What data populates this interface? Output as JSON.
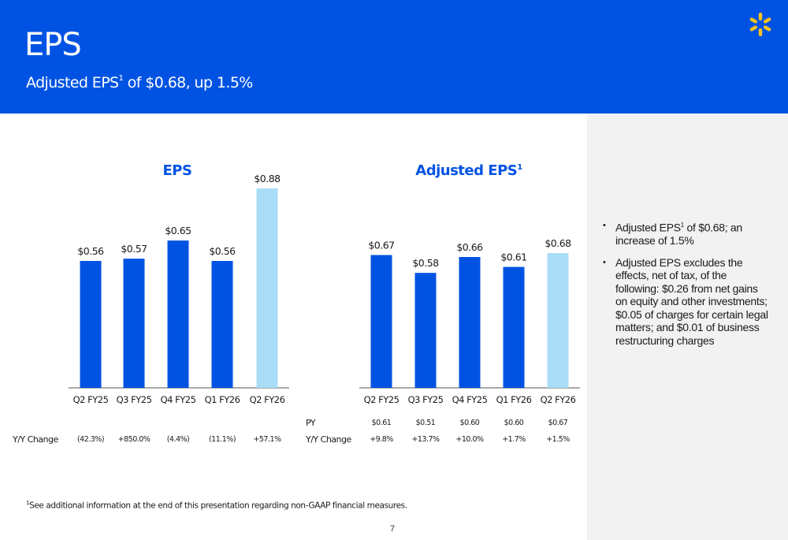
{
  "header": {
    "title": "EPS",
    "subtitle_main": "Adjusted EPS",
    "subtitle_sup": "1",
    "subtitle_rest": " of $0.68, up 1.5%",
    "logo_icon": "walmart-spark-icon"
  },
  "colors": {
    "brand_blue": "#0053e2",
    "bar_dark": "#0053e2",
    "bar_light": "#a9ddf7",
    "spark_yellow": "#ffc220",
    "sidebar_bg": "#f2f2f2"
  },
  "chart_data": [
    {
      "type": "bar",
      "title": "EPS",
      "categories": [
        "Q2 FY25",
        "Q3 FY25",
        "Q4 FY25",
        "Q1 FY26",
        "Q2 FY26"
      ],
      "values": [
        0.56,
        0.57,
        0.65,
        0.56,
        0.88
      ],
      "data_labels": [
        "$0.56",
        "$0.57",
        "$0.65",
        "$0.56",
        "$0.88"
      ],
      "highlight_last": true,
      "ylim": [
        0,
        1.0
      ],
      "grid": false,
      "table": {
        "rows": [
          {
            "label": "Y/Y Change",
            "cells": [
              "(42.3%)",
              "+850.0%",
              "(4.4%)",
              "(11.1%)",
              "+57.1%"
            ]
          }
        ]
      }
    },
    {
      "type": "bar",
      "title": "Adjusted EPS",
      "title_sup": "1",
      "categories": [
        "Q2 FY25",
        "Q3 FY25",
        "Q4 FY25",
        "Q1 FY26",
        "Q2 FY26"
      ],
      "values": [
        0.67,
        0.58,
        0.66,
        0.61,
        0.68
      ],
      "data_labels": [
        "$0.67",
        "$0.58",
        "$0.66",
        "$0.61",
        "$0.68"
      ],
      "highlight_last": true,
      "ylim": [
        0,
        0.9
      ],
      "grid": false,
      "table": {
        "rows": [
          {
            "label": "PY",
            "cells": [
              "$0.61",
              "$0.51",
              "$0.60",
              "$0.60",
              "$0.67"
            ]
          },
          {
            "label": "Y/Y Change",
            "cells": [
              "+9.8%",
              "+13.7%",
              "+10.0%",
              "+1.7%",
              "+1.5%"
            ]
          }
        ]
      }
    }
  ],
  "sidebar": {
    "bullets": [
      {
        "pre": "Adjusted EPS",
        "sup": "1",
        "post": " of $0.68; an increase of 1.5%"
      },
      {
        "pre": "Adjusted EPS excludes the effects, net of tax, of the following: $0.26 from net gains on equity and other investments; $0.05 of charges for certain legal matters; and  $0.01 of business restructuring charges",
        "sup": "",
        "post": ""
      }
    ]
  },
  "footnote": {
    "sup": "1",
    "text": "See additional information at the end of this presentation regarding non-GAAP financial measures."
  },
  "page_number": "7"
}
